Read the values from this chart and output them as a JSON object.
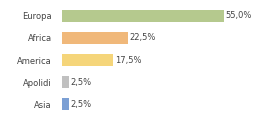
{
  "categories": [
    "Europa",
    "Africa",
    "America",
    "Apolidi",
    "Asia"
  ],
  "values": [
    55.0,
    22.5,
    17.5,
    2.5,
    2.5
  ],
  "labels": [
    "55,0%",
    "22,5%",
    "17,5%",
    "2,5%",
    "2,5%"
  ],
  "bar_colors": [
    "#b5c98e",
    "#f0b87a",
    "#f5d57a",
    "#c0c0c0",
    "#7b9fd4"
  ],
  "background_color": "#ffffff",
  "xlim": [
    0,
    72
  ],
  "label_fontsize": 6.0,
  "cat_fontsize": 6.0,
  "bar_height": 0.55
}
